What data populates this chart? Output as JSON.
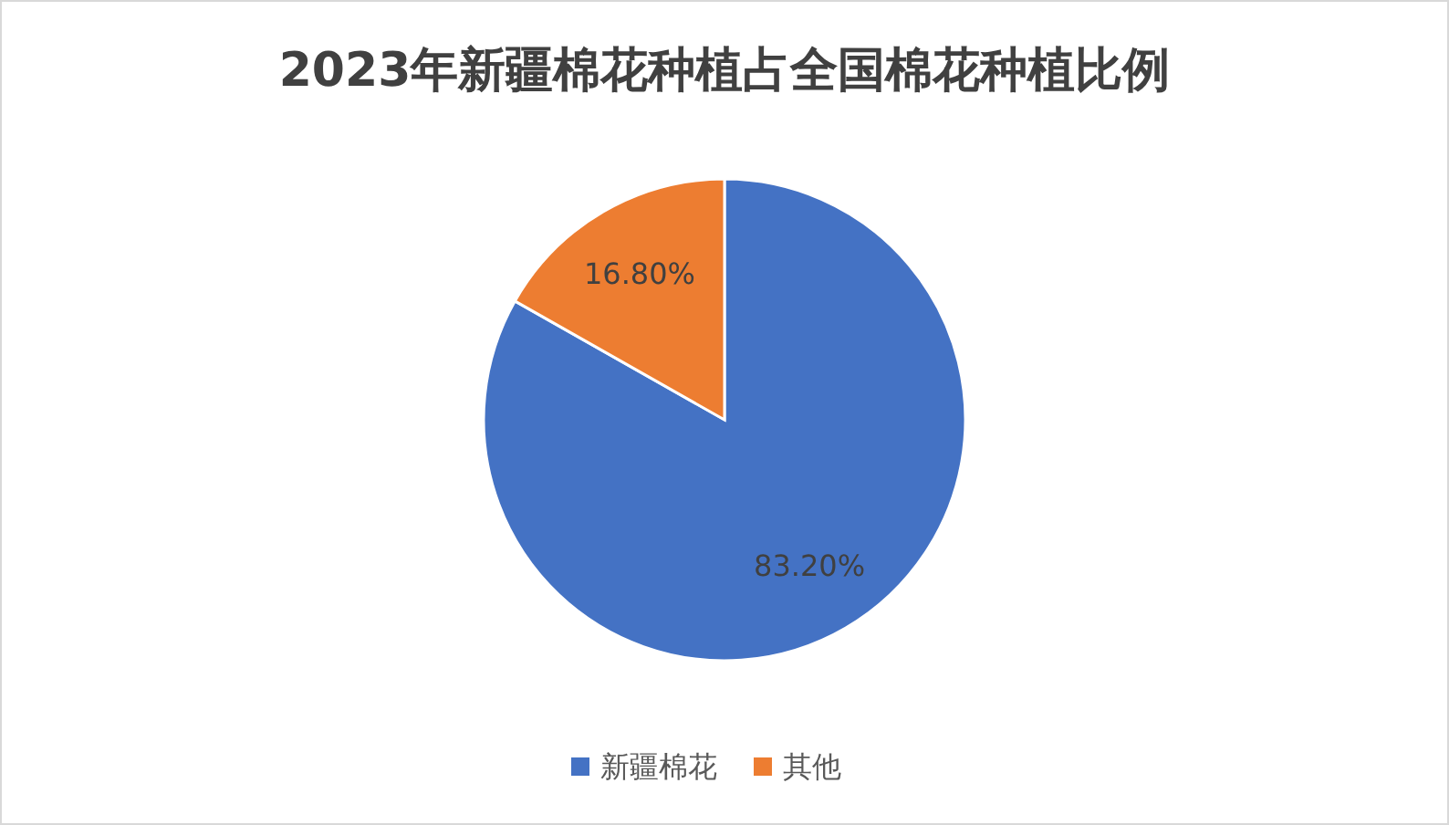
{
  "chart_data": {
    "type": "pie",
    "title": "2023年新疆棉花种植占全国棉花种植比例",
    "categories": [
      "新疆棉花",
      "其他"
    ],
    "values": [
      83.2,
      16.8
    ],
    "colors": [
      "#4472c4",
      "#ed7d31"
    ],
    "value_labels": [
      "83.20%",
      "16.80%"
    ],
    "legend": "bottom"
  }
}
